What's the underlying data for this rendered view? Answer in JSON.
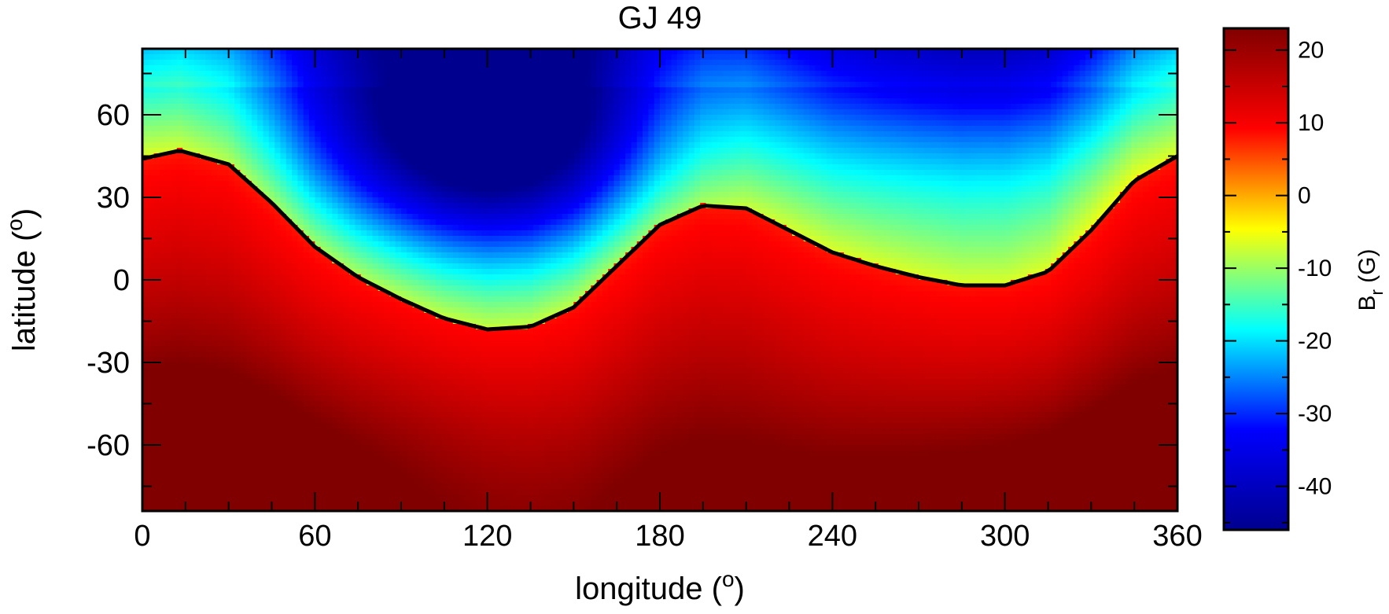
{
  "chart_data": {
    "type": "heatmap",
    "title": "GJ 49",
    "xlabel": "longitude (",
    "xlabel_sup": "o",
    "xlabel_end": ")",
    "ylabel": "latitude (",
    "ylabel_sup": "o",
    "ylabel_end": ")",
    "xlim": [
      0,
      360
    ],
    "ylim": [
      -84,
      84
    ],
    "x_ticks": [
      0,
      60,
      120,
      180,
      240,
      300,
      360
    ],
    "y_ticks": [
      60,
      30,
      0,
      -30,
      -60
    ],
    "colorbar": {
      "label": "B",
      "label_sub": "r",
      "label_end": " (G)",
      "range": [
        -46,
        23
      ],
      "ticks": [
        20,
        10,
        0,
        -10,
        -20,
        -30,
        -40
      ],
      "colormap": [
        "#00008f",
        "#0000ff",
        "#00ffff",
        "#ffff00",
        "#ff0000",
        "#800000"
      ]
    },
    "zero_contour": {
      "description_color": "#000000",
      "points": [
        [
          0,
          44
        ],
        [
          13,
          47
        ],
        [
          30,
          42
        ],
        [
          45,
          28
        ],
        [
          60,
          12
        ],
        [
          75,
          1
        ],
        [
          90,
          -7
        ],
        [
          105,
          -14
        ],
        [
          120,
          -18
        ],
        [
          135,
          -17
        ],
        [
          150,
          -10
        ],
        [
          165,
          5
        ],
        [
          180,
          20
        ],
        [
          195,
          27
        ],
        [
          210,
          26
        ],
        [
          225,
          18
        ],
        [
          240,
          10
        ],
        [
          255,
          5
        ],
        [
          270,
          1
        ],
        [
          285,
          -2
        ],
        [
          300,
          -2
        ],
        [
          315,
          3
        ],
        [
          330,
          18
        ],
        [
          345,
          36
        ],
        [
          360,
          45
        ]
      ]
    },
    "features": {
      "min_center": [
        118,
        48
      ],
      "secondary_min_center": [
        295,
        40
      ],
      "max_center": [
        30,
        -70
      ]
    }
  }
}
